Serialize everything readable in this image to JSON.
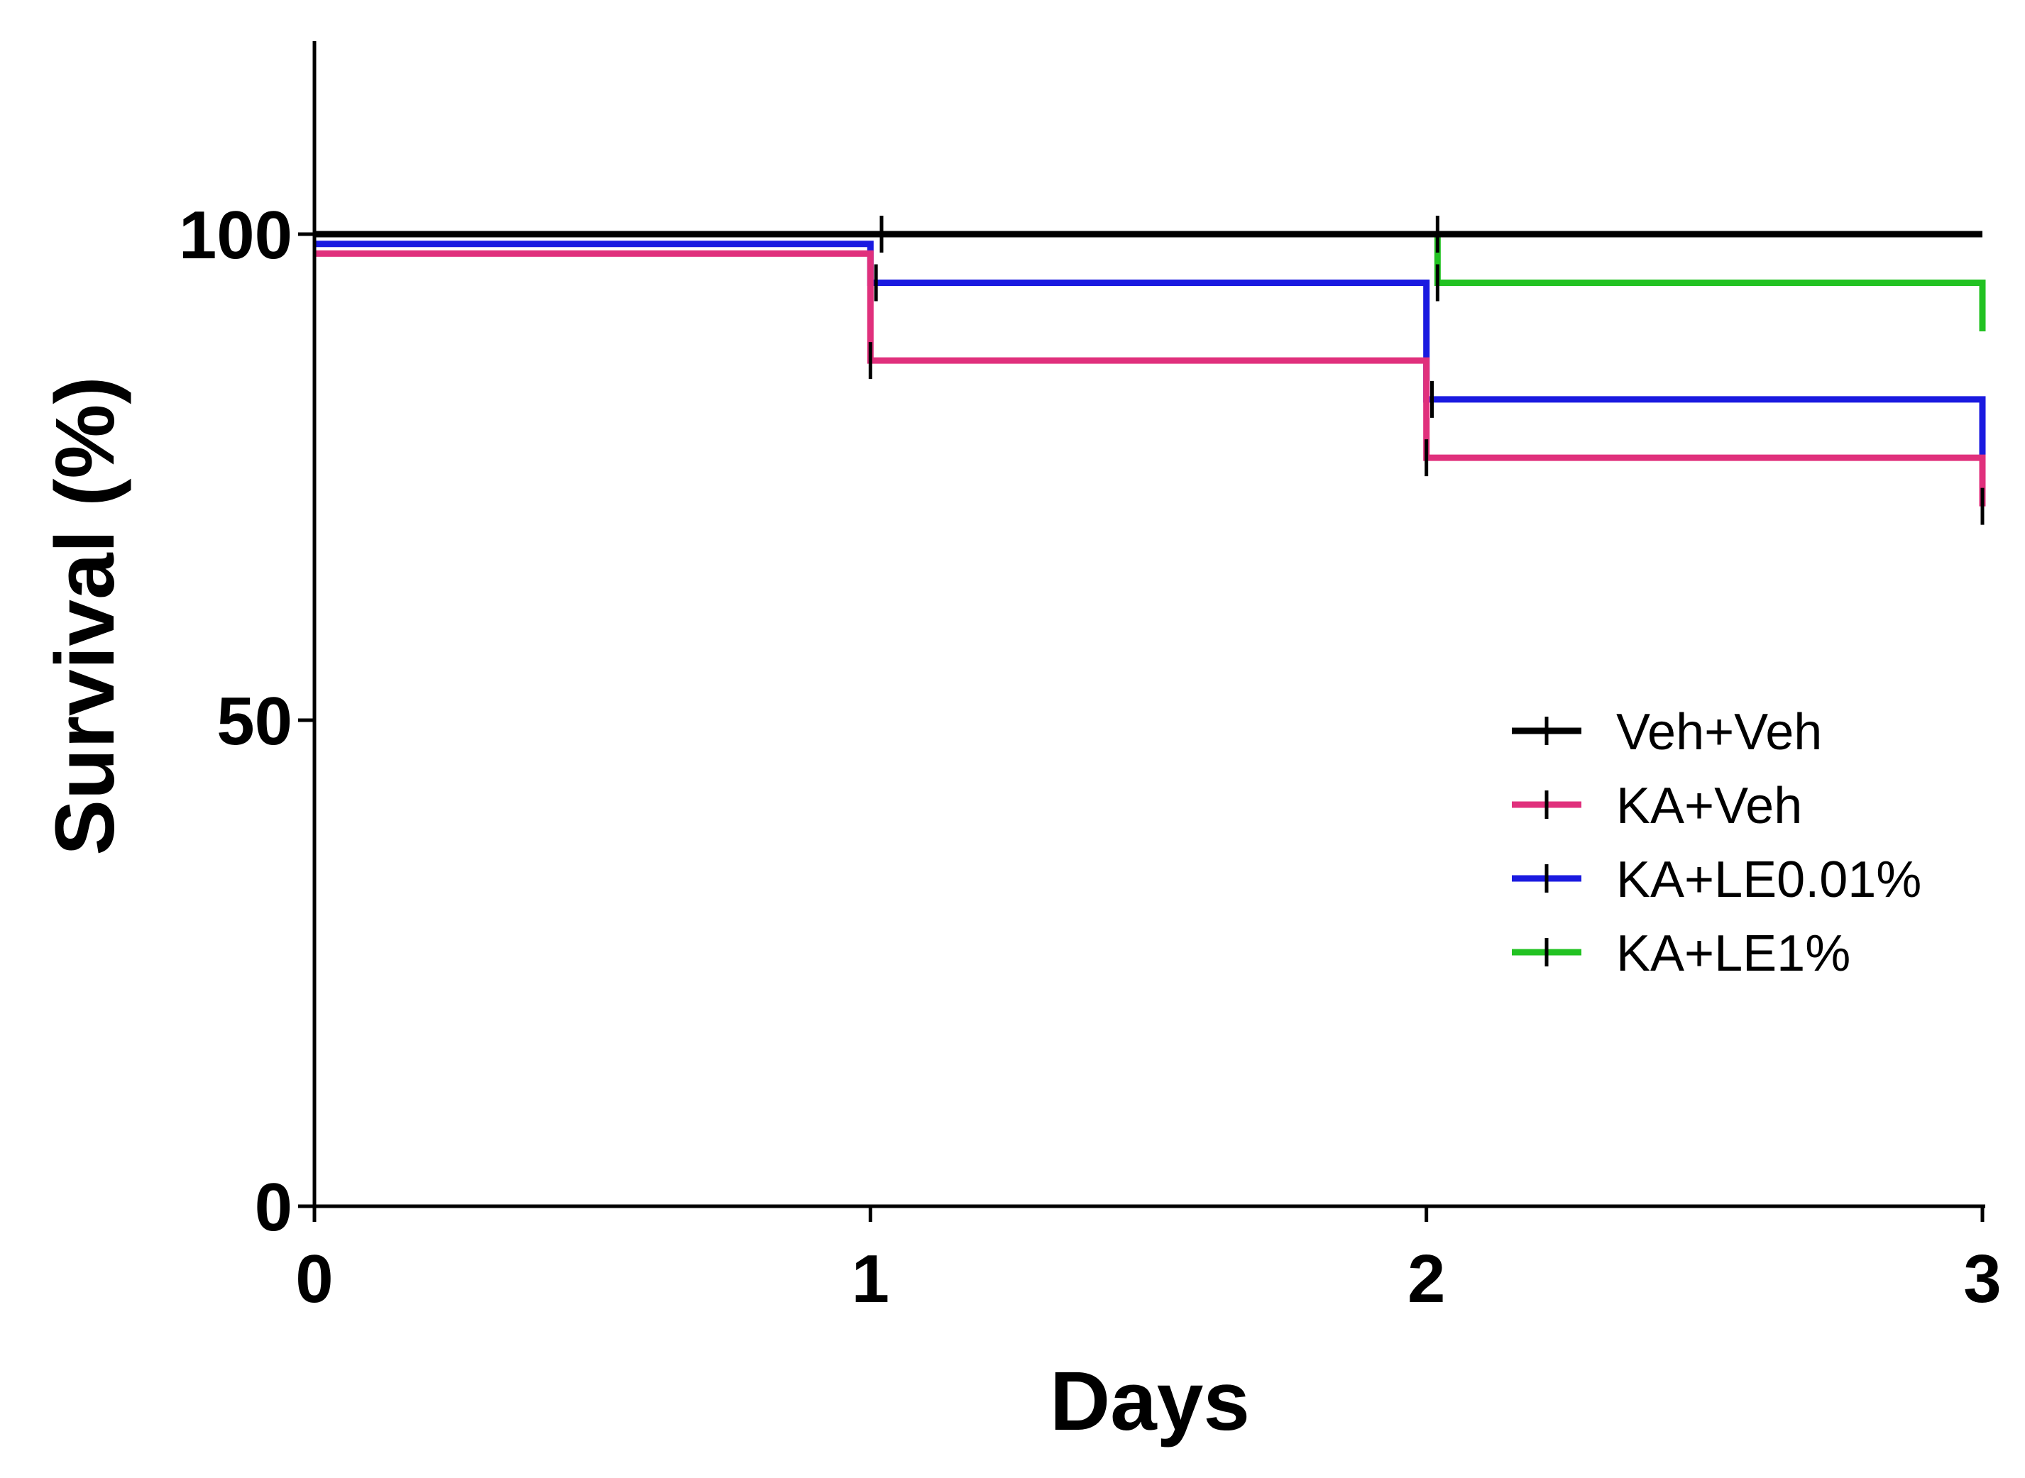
{
  "chart_data": {
    "type": "line",
    "subtype": "kaplan-meier step survival curve",
    "title": "",
    "xlabel": "Days",
    "ylabel": "Survival (%)",
    "xlim": [
      0,
      3
    ],
    "ylim": [
      0,
      120
    ],
    "x_ticks": [
      0,
      1,
      2,
      3
    ],
    "x_tick_labels": [
      "0",
      "1",
      "2",
      "3"
    ],
    "y_ticks": [
      0,
      50,
      100
    ],
    "y_tick_labels": [
      "0",
      "50",
      "100"
    ],
    "grid": false,
    "legend_position": "right",
    "series": [
      {
        "name": "Veh+Veh",
        "color": "#000000",
        "steps": [
          {
            "x": 0,
            "y": 100
          },
          {
            "x": 3,
            "y": 100
          }
        ],
        "censor_marks": [
          {
            "x": 1.02,
            "y": 100
          },
          {
            "x": 2.02,
            "y": 100
          }
        ]
      },
      {
        "name": "KA+Veh",
        "color": "#e0307c",
        "steps": [
          {
            "x": 0,
            "y": 98
          },
          {
            "x": 1,
            "y": 87
          },
          {
            "x": 2,
            "y": 77
          },
          {
            "x": 3,
            "y": 72
          }
        ],
        "censor_marks": [
          {
            "x": 1,
            "y": 87
          },
          {
            "x": 2,
            "y": 77
          },
          {
            "x": 3,
            "y": 72
          }
        ]
      },
      {
        "name": "KA+LE0.01%",
        "color": "#1a1ae0",
        "steps": [
          {
            "x": 0,
            "y": 99
          },
          {
            "x": 1,
            "y": 95
          },
          {
            "x": 2,
            "y": 83
          },
          {
            "x": 3,
            "y": 77
          }
        ],
        "censor_marks": [
          {
            "x": 1.01,
            "y": 95
          },
          {
            "x": 2.01,
            "y": 83
          }
        ]
      },
      {
        "name": "KA+LE1%",
        "color": "#22c222",
        "steps": [
          {
            "x": 0,
            "y": 100
          },
          {
            "x": 2.02,
            "y": 95
          },
          {
            "x": 3,
            "y": 90
          }
        ],
        "censor_marks": [
          {
            "x": 2.02,
            "y": 95
          }
        ]
      }
    ]
  }
}
